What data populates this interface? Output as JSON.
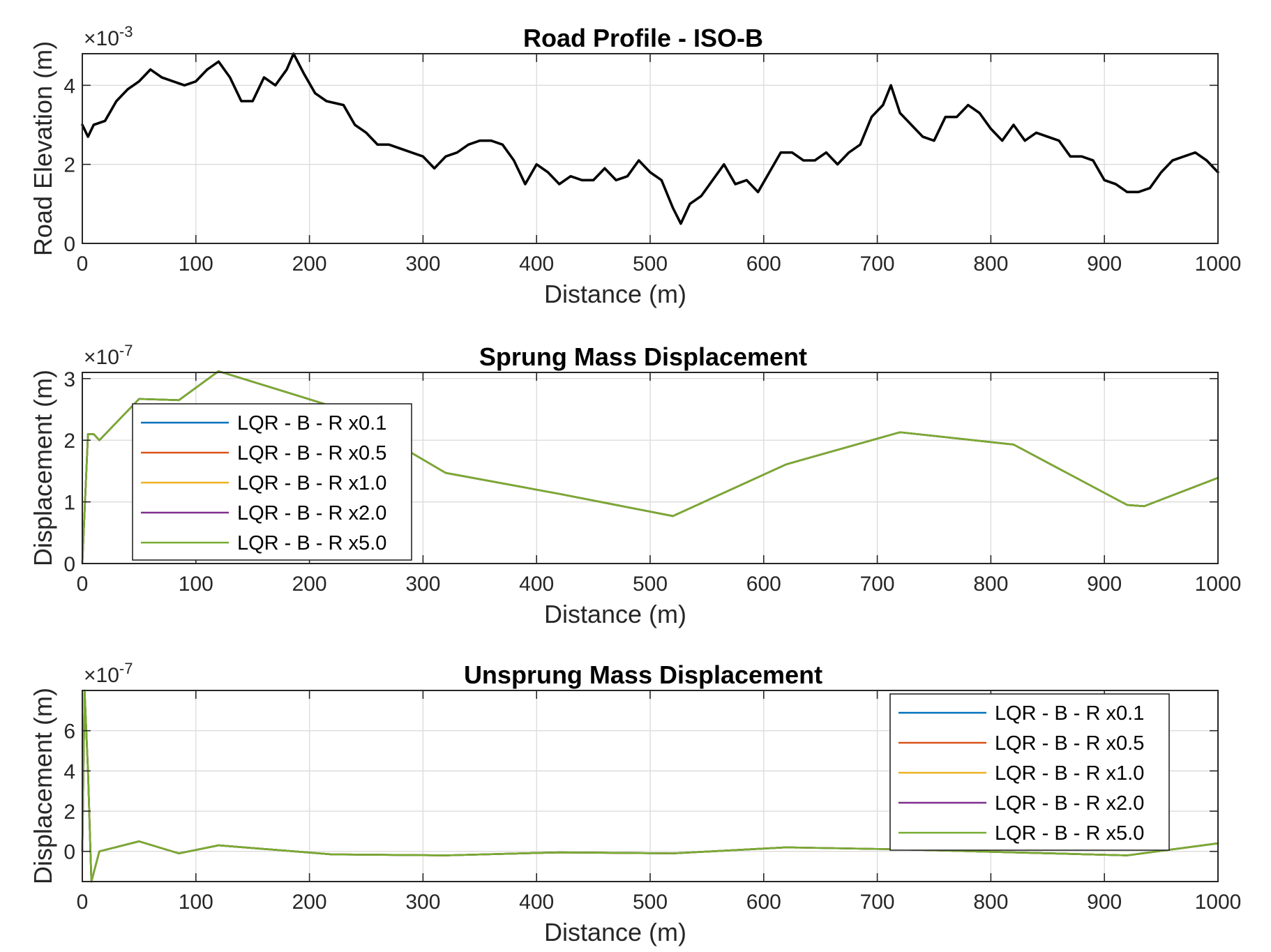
{
  "chart_data": [
    {
      "type": "line",
      "title": "Road Profile - ISO-B",
      "xlabel": "Distance (m)",
      "ylabel": "Road Elevation (m)",
      "y_exponent": "-3",
      "xlim": [
        0,
        1000
      ],
      "ylim": [
        0,
        4.8
      ],
      "xticks": [
        0,
        100,
        200,
        300,
        400,
        500,
        600,
        700,
        800,
        900,
        1000
      ],
      "yticks": [
        0,
        2,
        4
      ],
      "grid": true,
      "series": [
        {
          "color": "#000000",
          "x": [
            0,
            5,
            10,
            20,
            30,
            40,
            50,
            60,
            70,
            80,
            90,
            100,
            110,
            120,
            130,
            140,
            150,
            160,
            170,
            180,
            186,
            195,
            205,
            215,
            230,
            240,
            250,
            260,
            270,
            280,
            290,
            300,
            310,
            320,
            330,
            340,
            350,
            360,
            370,
            380,
            390,
            400,
            410,
            420,
            430,
            440,
            450,
            460,
            470,
            480,
            490,
            500,
            510,
            520,
            527,
            535,
            545,
            555,
            565,
            575,
            585,
            595,
            605,
            615,
            625,
            635,
            645,
            655,
            665,
            675,
            685,
            695,
            705,
            712,
            720,
            730,
            740,
            750,
            760,
            770,
            780,
            790,
            800,
            810,
            820,
            830,
            840,
            850,
            860,
            870,
            880,
            890,
            900,
            910,
            920,
            930,
            940,
            950,
            960,
            970,
            980,
            990,
            1000
          ],
          "y": [
            3.0,
            2.7,
            3.0,
            3.1,
            3.6,
            3.9,
            4.1,
            4.4,
            4.2,
            4.1,
            4.0,
            4.1,
            4.4,
            4.6,
            4.2,
            3.6,
            3.6,
            4.2,
            4.0,
            4.4,
            4.8,
            4.3,
            3.8,
            3.6,
            3.5,
            3.0,
            2.8,
            2.5,
            2.5,
            2.4,
            2.3,
            2.2,
            1.9,
            2.2,
            2.3,
            2.5,
            2.6,
            2.6,
            2.5,
            2.1,
            1.5,
            2.0,
            1.8,
            1.5,
            1.7,
            1.6,
            1.6,
            1.9,
            1.6,
            1.7,
            2.1,
            1.8,
            1.6,
            0.9,
            0.5,
            1.0,
            1.2,
            1.6,
            2.0,
            1.5,
            1.6,
            1.3,
            1.8,
            2.3,
            2.3,
            2.1,
            2.1,
            2.3,
            2.0,
            2.3,
            2.5,
            3.2,
            3.5,
            4.0,
            3.3,
            3.0,
            2.7,
            2.6,
            3.2,
            3.2,
            3.5,
            3.3,
            2.9,
            2.6,
            3.0,
            2.6,
            2.8,
            2.7,
            2.6,
            2.2,
            2.2,
            2.1,
            1.6,
            1.5,
            1.3,
            1.3,
            1.4,
            1.8,
            2.1,
            2.2,
            2.3,
            2.1,
            1.8
          ]
        }
      ]
    },
    {
      "type": "line",
      "title": "Sprung Mass Displacement",
      "xlabel": "Distance (m)",
      "ylabel": "Displacement (m)",
      "y_exponent": "-7",
      "xlim": [
        0,
        1000
      ],
      "ylim": [
        0,
        3.1
      ],
      "xticks": [
        0,
        100,
        200,
        300,
        400,
        500,
        600,
        700,
        800,
        900,
        1000
      ],
      "yticks": [
        0,
        1,
        2,
        3
      ],
      "grid": true,
      "legend": "upper-left",
      "series": [
        {
          "name": "LQR - B - R x0.1",
          "color": "#0072BD",
          "x": [
            0,
            5,
            10,
            15,
            50,
            85,
            120,
            220,
            320,
            420,
            520,
            620,
            720,
            820,
            920,
            935,
            1000
          ],
          "y": [
            0,
            2.1,
            2.1,
            2.0,
            2.67,
            2.65,
            3.12,
            2.55,
            1.47,
            1.13,
            0.77,
            1.61,
            2.13,
            1.93,
            0.95,
            0.93,
            1.39
          ]
        },
        {
          "name": "LQR - B - R x0.5",
          "color": "#D95319",
          "x": [
            0,
            5,
            10,
            15,
            50,
            85,
            120,
            220,
            320,
            420,
            520,
            620,
            720,
            820,
            920,
            935,
            1000
          ],
          "y": [
            0,
            2.1,
            2.1,
            2.0,
            2.67,
            2.65,
            3.12,
            2.55,
            1.47,
            1.13,
            0.77,
            1.61,
            2.13,
            1.93,
            0.95,
            0.93,
            1.39
          ]
        },
        {
          "name": "LQR - B - R x1.0",
          "color": "#EDB120",
          "x": [
            0,
            5,
            10,
            15,
            50,
            85,
            120,
            220,
            320,
            420,
            520,
            620,
            720,
            820,
            920,
            935,
            1000
          ],
          "y": [
            0,
            2.1,
            2.1,
            2.0,
            2.67,
            2.65,
            3.12,
            2.55,
            1.47,
            1.13,
            0.77,
            1.61,
            2.13,
            1.93,
            0.95,
            0.93,
            1.39
          ]
        },
        {
          "name": "LQR - B - R x2.0",
          "color": "#7E2F8E",
          "x": [
            0,
            5,
            10,
            15,
            50,
            85,
            120,
            220,
            320,
            420,
            520,
            620,
            720,
            820,
            920,
            935,
            1000
          ],
          "y": [
            0,
            2.1,
            2.1,
            2.0,
            2.67,
            2.65,
            3.12,
            2.55,
            1.47,
            1.13,
            0.77,
            1.61,
            2.13,
            1.93,
            0.95,
            0.93,
            1.39
          ]
        },
        {
          "name": "LQR - B - R x5.0",
          "color": "#77AC30",
          "x": [
            0,
            5,
            10,
            15,
            50,
            85,
            120,
            220,
            320,
            420,
            520,
            620,
            720,
            820,
            920,
            935,
            1000
          ],
          "y": [
            0,
            2.1,
            2.1,
            2.0,
            2.67,
            2.65,
            3.12,
            2.55,
            1.47,
            1.13,
            0.77,
            1.61,
            2.13,
            1.93,
            0.95,
            0.93,
            1.39
          ]
        }
      ]
    },
    {
      "type": "line",
      "title": "Unsprung Mass Displacement",
      "xlabel": "Distance (m)",
      "ylabel": "Displacement (m)",
      "y_exponent": "-7",
      "xlim": [
        0,
        1000
      ],
      "ylim": [
        -1.5,
        8
      ],
      "xticks": [
        0,
        100,
        200,
        300,
        400,
        500,
        600,
        700,
        800,
        900,
        1000
      ],
      "yticks": [
        0,
        2,
        4,
        6
      ],
      "grid": true,
      "legend": "upper-right",
      "series": [
        {
          "name": "LQR - B - R x0.1",
          "color": "#0072BD",
          "x": [
            0,
            2,
            5,
            8,
            15,
            50,
            85,
            120,
            220,
            320,
            420,
            520,
            620,
            720,
            820,
            920,
            1000
          ],
          "y": [
            0,
            8,
            4,
            -1.5,
            0,
            0.5,
            -0.1,
            0.3,
            -0.15,
            -0.2,
            -0.05,
            -0.1,
            0.2,
            0.1,
            -0.05,
            -0.2,
            0.4
          ]
        },
        {
          "name": "LQR - B - R x0.5",
          "color": "#D95319",
          "x": [
            0,
            2,
            5,
            8,
            15,
            50,
            85,
            120,
            220,
            320,
            420,
            520,
            620,
            720,
            820,
            920,
            1000
          ],
          "y": [
            0,
            8,
            4,
            -1.5,
            0,
            0.5,
            -0.1,
            0.3,
            -0.15,
            -0.2,
            -0.05,
            -0.1,
            0.2,
            0.1,
            -0.05,
            -0.2,
            0.4
          ]
        },
        {
          "name": "LQR - B - R x1.0",
          "color": "#EDB120",
          "x": [
            0,
            2,
            5,
            8,
            15,
            50,
            85,
            120,
            220,
            320,
            420,
            520,
            620,
            720,
            820,
            920,
            1000
          ],
          "y": [
            0,
            8,
            4,
            -1.5,
            0,
            0.5,
            -0.1,
            0.3,
            -0.15,
            -0.2,
            -0.05,
            -0.1,
            0.2,
            0.1,
            -0.05,
            -0.2,
            0.4
          ]
        },
        {
          "name": "LQR - B - R x2.0",
          "color": "#7E2F8E",
          "x": [
            0,
            2,
            5,
            8,
            15,
            50,
            85,
            120,
            220,
            320,
            420,
            520,
            620,
            720,
            820,
            920,
            1000
          ],
          "y": [
            0,
            8,
            4,
            -1.5,
            0,
            0.5,
            -0.1,
            0.3,
            -0.15,
            -0.2,
            -0.05,
            -0.1,
            0.2,
            0.1,
            -0.05,
            -0.2,
            0.4
          ]
        },
        {
          "name": "LQR - B - R x5.0",
          "color": "#77AC30",
          "x": [
            0,
            2,
            5,
            8,
            15,
            50,
            85,
            120,
            220,
            320,
            420,
            520,
            620,
            720,
            820,
            920,
            1000
          ],
          "y": [
            0,
            8,
            4,
            -1.5,
            0,
            0.5,
            -0.1,
            0.3,
            -0.15,
            -0.2,
            -0.05,
            -0.1,
            0.2,
            0.1,
            -0.05,
            -0.2,
            0.4
          ]
        }
      ]
    }
  ]
}
